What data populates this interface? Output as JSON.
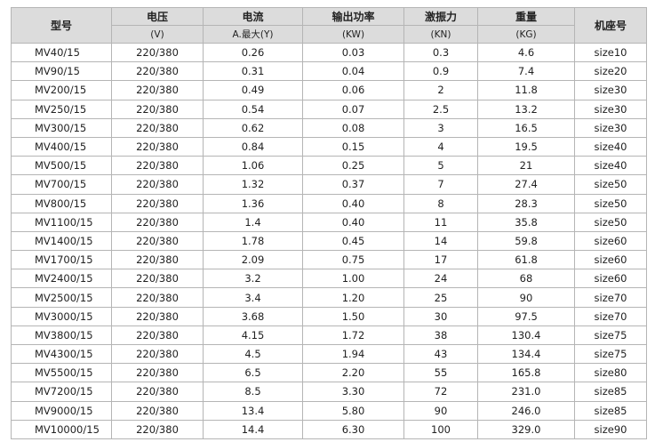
{
  "table": {
    "columns": [
      {
        "title": "型号"
      },
      {
        "title": "电压",
        "unit": "(V)"
      },
      {
        "title": "电流",
        "unit": "A.最大(Y)"
      },
      {
        "title": "输出功率",
        "unit": "(KW)"
      },
      {
        "title": "激振力",
        "unit": "(KN)"
      },
      {
        "title": "重量",
        "unit": "(KG)"
      },
      {
        "title": "机座号"
      }
    ],
    "rows": [
      [
        "MV40/15",
        "220/380",
        "0.26",
        "0.03",
        "0.3",
        "4.6",
        "size10"
      ],
      [
        "MV90/15",
        "220/380",
        "0.31",
        "0.04",
        "0.9",
        "7.4",
        "size20"
      ],
      [
        "MV200/15",
        "220/380",
        "0.49",
        "0.06",
        "2",
        "11.8",
        "size30"
      ],
      [
        "MV250/15",
        "220/380",
        "0.54",
        "0.07",
        "2.5",
        "13.2",
        "size30"
      ],
      [
        "MV300/15",
        "220/380",
        "0.62",
        "0.08",
        "3",
        "16.5",
        "size30"
      ],
      [
        "MV400/15",
        "220/380",
        "0.84",
        "0.15",
        "4",
        "19.5",
        "size40"
      ],
      [
        "MV500/15",
        "220/380",
        "1.06",
        "0.25",
        "5",
        "21",
        "size40"
      ],
      [
        "MV700/15",
        "220/380",
        "1.32",
        "0.37",
        "7",
        "27.4",
        "size50"
      ],
      [
        "MV800/15",
        "220/380",
        "1.36",
        "0.40",
        "8",
        "28.3",
        "size50"
      ],
      [
        "MV1100/15",
        "220/380",
        "1.4",
        "0.40",
        "11",
        "35.8",
        "size50"
      ],
      [
        "MV1400/15",
        "220/380",
        "1.78",
        "0.45",
        "14",
        "59.8",
        "size60"
      ],
      [
        "MV1700/15",
        "220/380",
        "2.09",
        "0.75",
        "17",
        "61.8",
        "size60"
      ],
      [
        "MV2400/15",
        "220/380",
        "3.2",
        "1.00",
        "24",
        "68",
        "size60"
      ],
      [
        "MV2500/15",
        "220/380",
        "3.4",
        "1.20",
        "25",
        "90",
        "size70"
      ],
      [
        "MV3000/15",
        "220/380",
        "3.68",
        "1.50",
        "30",
        "97.5",
        "size70"
      ],
      [
        "MV3800/15",
        "220/380",
        "4.15",
        "1.72",
        "38",
        "130.4",
        "size75"
      ],
      [
        "MV4300/15",
        "220/380",
        "4.5",
        "1.94",
        "43",
        "134.4",
        "size75"
      ],
      [
        "MV5500/15",
        "220/380",
        "6.5",
        "2.20",
        "55",
        "165.8",
        "size80"
      ],
      [
        "MV7200/15",
        "220/380",
        "8.5",
        "3.30",
        "72",
        "231.0",
        "size85"
      ],
      [
        "MV9000/15",
        "220/380",
        "13.4",
        "5.80",
        "90",
        "246.0",
        "size85"
      ],
      [
        "MV10000/15",
        "220/380",
        "14.4",
        "6.30",
        "100",
        "329.0",
        "size90"
      ]
    ]
  }
}
